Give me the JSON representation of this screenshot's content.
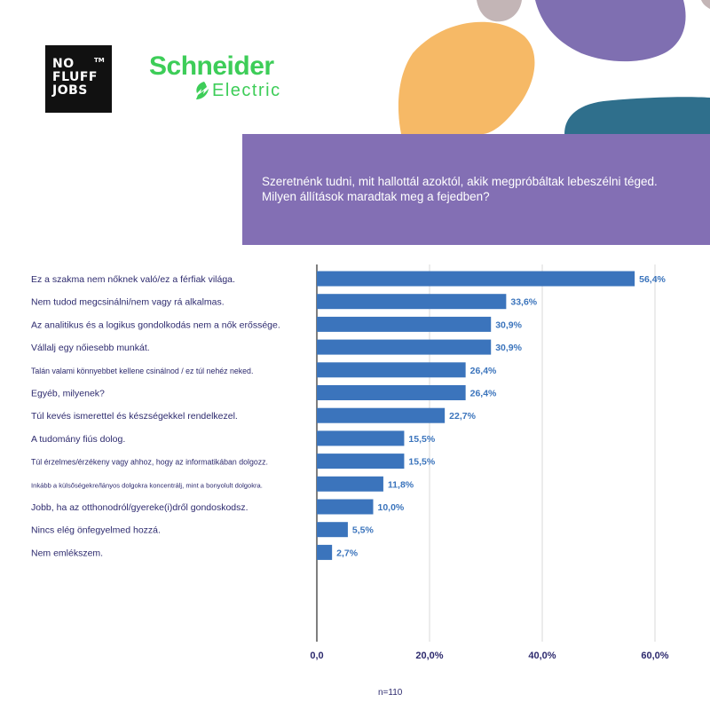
{
  "logos": {
    "nofluffjobs_lines": [
      "NO",
      "FLUFF",
      "JOBS"
    ],
    "nofluffjobs_tm": "TM",
    "schneider_name": "Schneider",
    "schneider_sub": "Electric"
  },
  "question": "Szeretnénk tudni, mit hallottál azoktól, akik megpróbáltak lebeszélni téged. Milyen állítások maradtak meg a fejedben?",
  "footnote": "n=110",
  "colors": {
    "bar": "#3b74bc",
    "label_text": "#2d2a6e",
    "panel": "#836fb4",
    "brand_green": "#3dcd58"
  },
  "chart_data": {
    "type": "bar",
    "orientation": "horizontal",
    "categories": [
      "Ez a szakma nem nőknek való/ez a férfiak világa.",
      "Nem tudod megcsinálni/nem vagy rá alkalmas.",
      "Az analitikus és a logikus gondolkodás nem a nők erőssége.",
      "Vállalj egy nőiesebb munkát.",
      "Talán valami könnyebbet kellene csinálnod / ez túl nehéz neked.",
      "Egyéb, milyenek?",
      "Túl kevés ismerettel és készségekkel rendelkezel.",
      "A tudomány fiús dolog.",
      "Túl érzelmes/érzékeny vagy ahhoz, hogy az informatikában dolgozz.",
      "Inkább a külsőségekre/lányos dolgokra koncentrálj, mint a bonyolult dolgokra.",
      "Jobb, ha az otthonodról/gyereke(i)dről gondoskodsz.",
      "Nincs elég önfegyelmed hozzá.",
      "Nem emlékszem."
    ],
    "values": [
      56.4,
      33.6,
      30.9,
      30.9,
      26.4,
      26.4,
      22.7,
      15.5,
      15.5,
      11.8,
      10.0,
      5.5,
      2.7
    ],
    "data_labels": [
      "56,4%",
      "33,6%",
      "30,9%",
      "30,9%",
      "26,4%",
      "26,4%",
      "22,7%",
      "15,5%",
      "15,5%",
      "11,8%",
      "10,0%",
      "5,5%",
      "2,7%"
    ],
    "xlim": [
      0,
      60
    ],
    "ticks": [
      0,
      20,
      40,
      60
    ],
    "tick_labels": [
      "0,0",
      "20,0%",
      "40,0%",
      "60,0%"
    ],
    "grid": true
  }
}
